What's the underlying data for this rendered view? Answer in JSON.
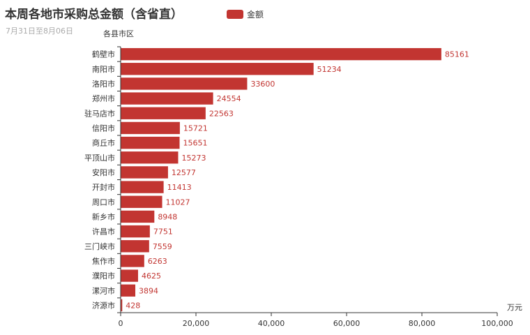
{
  "title": "本周各地市采购总金额（含省直）",
  "subtitle": "7月31日至8月06日",
  "legend": {
    "label": "金额",
    "color": "#c23531"
  },
  "chart_data": {
    "type": "bar",
    "orientation": "horizontal",
    "title": "本周各地市采购总金额（含省直）",
    "subtitle": "7月31日至8月06日",
    "ylabel": "各县市区",
    "xlabel": "万元",
    "categories": [
      "鹤壁市",
      "南阳市",
      "洛阳市",
      "郑州市",
      "驻马店市",
      "信阳市",
      "商丘市",
      "平顶山市",
      "安阳市",
      "开封市",
      "周口市",
      "新乡市",
      "许昌市",
      "三门峡市",
      "焦作市",
      "濮阳市",
      "漯河市",
      "济源市"
    ],
    "series": [
      {
        "name": "金额",
        "values": [
          85161,
          51234,
          33600,
          24554,
          22563,
          15721,
          15651,
          15273,
          12577,
          11413,
          11027,
          8948,
          7751,
          7559,
          6263,
          4625,
          3894,
          428
        ]
      }
    ],
    "xlim": [
      0,
      100000
    ],
    "xticks": [
      "0",
      "20,000",
      "40,000",
      "60,000",
      "80,000",
      "100,000"
    ],
    "grid": false,
    "legend_position": "top",
    "bar_color": "#c23531",
    "data_labels": true
  }
}
